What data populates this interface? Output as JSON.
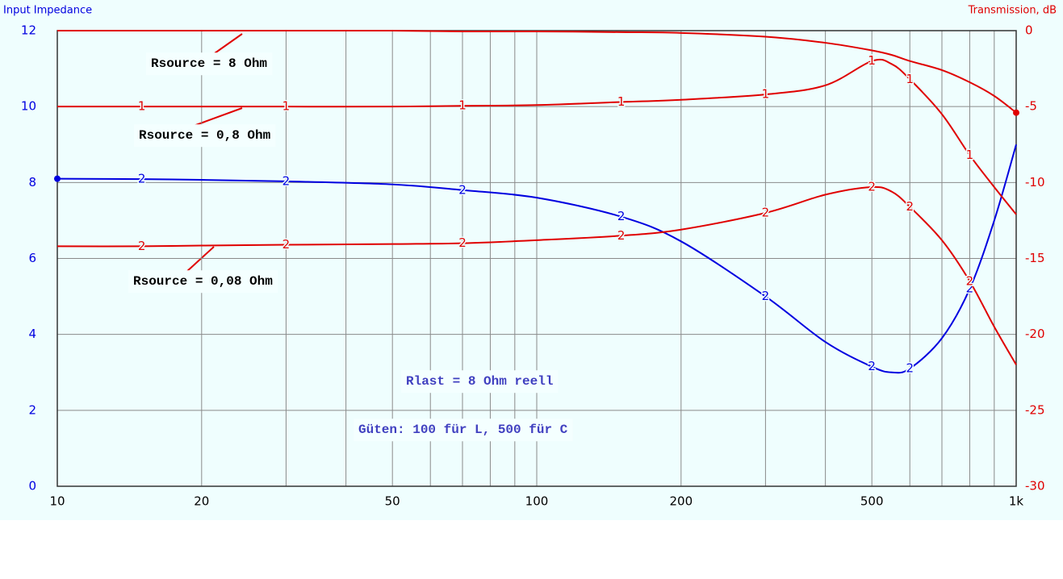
{
  "chart_data": {
    "type": "line",
    "y_title": "Input Impedance",
    "y2_title": "Transmission, dB",
    "log_x": true,
    "grid": true,
    "x": [
      10,
      15,
      20,
      30,
      50,
      70,
      100,
      150,
      200,
      300,
      400,
      500,
      550,
      600,
      700,
      800,
      900,
      1000
    ],
    "xlim": [
      10,
      1000
    ],
    "xticks": [
      10,
      20,
      50,
      100,
      200,
      500,
      {
        "value": 1000,
        "label": "1k"
      }
    ],
    "xgrid": [
      10,
      20,
      30,
      40,
      50,
      60,
      70,
      80,
      90,
      100,
      200,
      300,
      400,
      500,
      600,
      700,
      800,
      900,
      1000
    ],
    "ylim": [
      0,
      12
    ],
    "yticks": [
      0,
      2,
      4,
      6,
      8,
      10,
      12
    ],
    "y2lim": [
      -30,
      0
    ],
    "y2ticks": [
      0,
      -5,
      -10,
      -15,
      -20,
      -25,
      -30
    ],
    "series": [
      {
        "label": "2",
        "color": "#0000e0",
        "values": [
          8.1,
          8.09,
          8.07,
          8.03,
          7.95,
          7.8,
          7.6,
          7.1,
          6.45,
          5.0,
          3.8,
          3.15,
          3.0,
          3.1,
          3.9,
          5.2,
          7.0,
          9.0
        ]
      },
      {
        "color": "#e00000",
        "axis": "y2",
        "values": [
          0,
          0,
          0,
          0,
          0,
          -0.05,
          -0.05,
          -0.1,
          -0.15,
          -0.4,
          -0.8,
          -1.3,
          -1.6,
          -2.0,
          -2.6,
          -3.4,
          -4.3,
          -5.4
        ]
      },
      {
        "label": "1",
        "color": "#e00000",
        "axis": "y2",
        "values": [
          -5,
          -5,
          -5,
          -5,
          -5,
          -4.95,
          -4.9,
          -4.7,
          -4.55,
          -4.2,
          -3.6,
          -2.0,
          -2.2,
          -3.2,
          -5.5,
          -8.2,
          -10.3,
          -12.1
        ]
      },
      {
        "label": "2",
        "color": "#e00000",
        "axis": "y2",
        "values": [
          -14.2,
          -14.2,
          -14.15,
          -14.1,
          -14.05,
          -14.0,
          -13.8,
          -13.5,
          -13.1,
          -12.0,
          -10.8,
          -10.3,
          -10.6,
          -11.6,
          -13.8,
          -16.5,
          -19.5,
          -22.0
        ]
      }
    ],
    "annotations": [
      "Rsource = 8 Ohm",
      "Rsource = 0,8 Ohm",
      "Rsource = 0,08 Ohm",
      "Rlast = 8 Ohm reell",
      "Güten:  100 für L,  500 für C"
    ]
  }
}
